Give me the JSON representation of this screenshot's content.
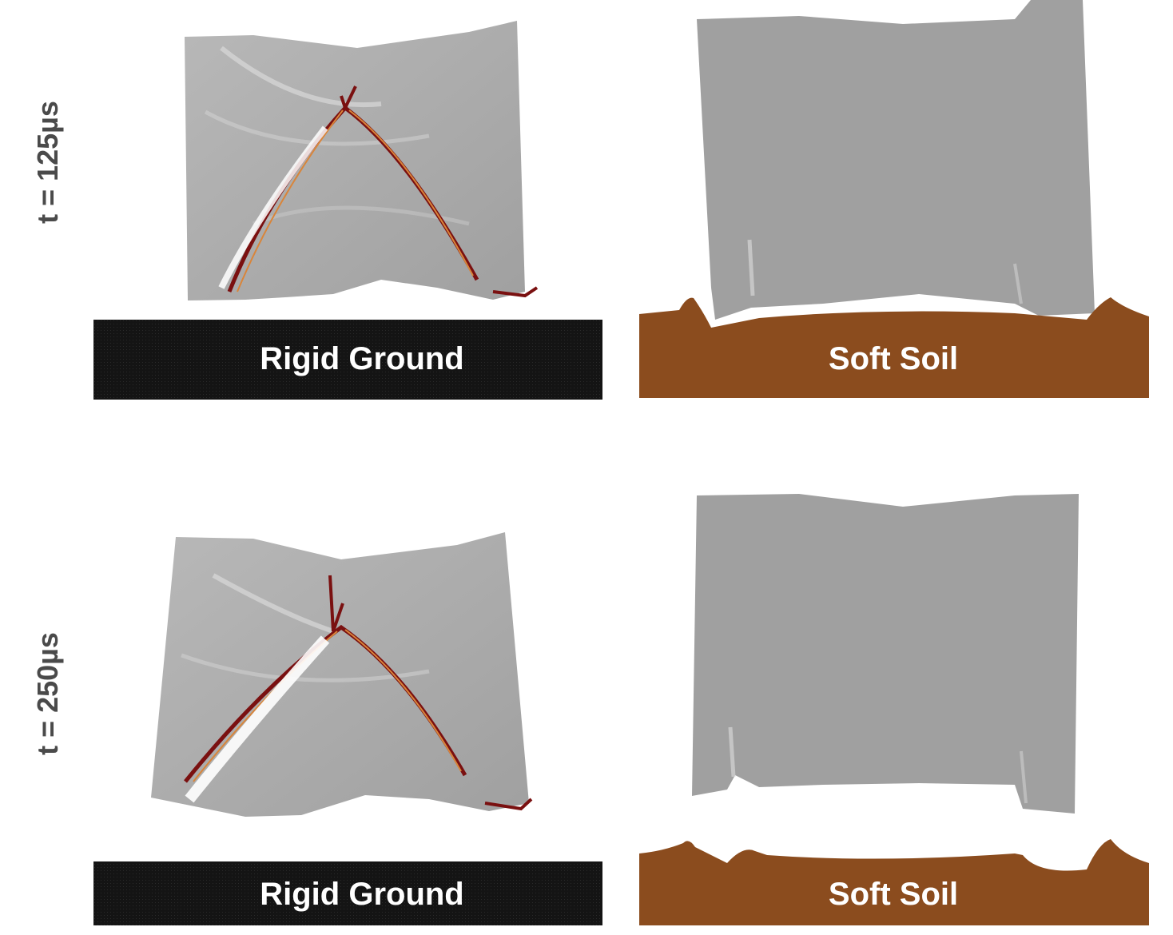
{
  "rows": [
    {
      "time_label": "t = 125µs",
      "panels": [
        {
          "ground_label": "Rigid Ground",
          "ground_type": "rigid",
          "ground_color": "#141414"
        },
        {
          "ground_label": "Soft Soil",
          "ground_type": "soil",
          "ground_color": "#8b4c1e"
        }
      ]
    },
    {
      "time_label": "t = 250µs",
      "panels": [
        {
          "ground_label": "Rigid Ground",
          "ground_type": "rigid",
          "ground_color": "#141414"
        },
        {
          "ground_label": "Soft Soil",
          "ground_type": "soil",
          "ground_color": "#8b4c1e"
        }
      ]
    }
  ],
  "colors": {
    "structure_gray": "#a3a3a3",
    "crack_dark_red": "#7a1010",
    "crack_orange": "#d9853a"
  }
}
